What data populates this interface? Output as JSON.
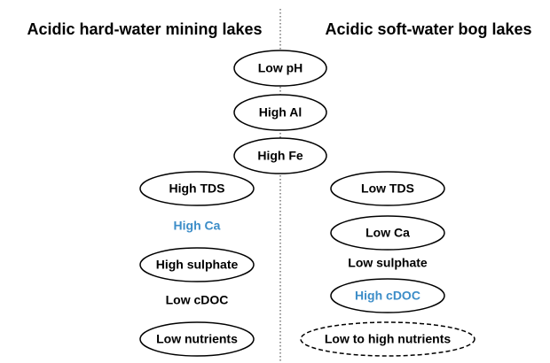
{
  "headings": {
    "left": "Acidic hard-water mining lakes",
    "right": "Acidic soft-water bog lakes"
  },
  "shared": [
    "Low pH",
    "High Al",
    "High Fe"
  ],
  "left": [
    "High TDS",
    "High Ca",
    "High sulphate",
    "Low cDOC",
    "Low nutrients"
  ],
  "right": [
    "Low TDS",
    "Low Ca",
    "Low sulphate",
    "High cDOC",
    "Low to high nutrients"
  ]
}
